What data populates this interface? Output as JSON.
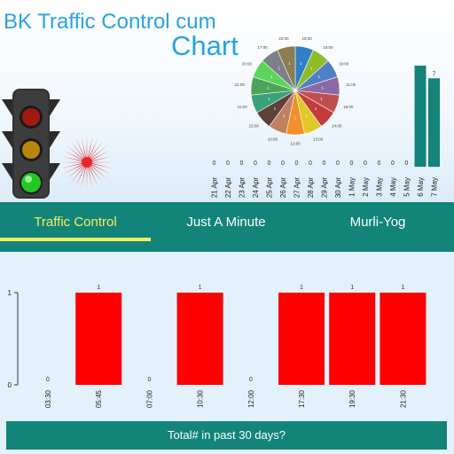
{
  "header": {
    "title_line1": "BK Traffic Control cum",
    "title_line2": "Chart"
  },
  "icons": [
    "traffic-light-icon",
    "chakra-icon"
  ],
  "colors": {
    "accent": "#29a3e0",
    "teal": "#128479",
    "active_tab": "#f4ee5a",
    "bar_red": "#ff0000"
  },
  "tabs": [
    {
      "label": "Traffic Control",
      "active": true
    },
    {
      "label": "Just A Minute",
      "active": false
    },
    {
      "label": "Murli-Yog",
      "active": false
    }
  ],
  "bottom_button": {
    "label": "Total# in past 30 days?"
  },
  "chart_data": [
    {
      "type": "pie",
      "labels": [
        "16:00",
        "18:00",
        "19:00",
        "11:00",
        "15:00",
        "14:00",
        "13:00",
        "12:00",
        "10:00",
        "15:00",
        "11:00",
        "21:00",
        "20:00",
        "17:00",
        "22:00"
      ],
      "values": [
        1,
        1,
        1,
        1,
        1,
        1,
        1,
        1,
        1,
        1,
        1,
        1,
        1,
        1,
        1
      ],
      "colors": [
        "#2e7fc6",
        "#8fbc2a",
        "#4f7fc4",
        "#8a6aa6",
        "#bf4f4f",
        "#c33b3b",
        "#e0c828",
        "#f0902b",
        "#c08060",
        "#5d4037",
        "#3aa07a",
        "#4ea35a",
        "#5cd45c",
        "#7c8087",
        "#8b7e50"
      ]
    },
    {
      "type": "bar",
      "categories": [
        "21 Apr",
        "22 Apr",
        "23 Apr",
        "24 Apr",
        "25 Apr",
        "26 Apr",
        "27 Apr",
        "28 Apr",
        "29 Apr",
        "30 Apr",
        "1 May",
        "2 May",
        "3 May",
        "4 May",
        "5 May",
        "6 May",
        "7 May"
      ],
      "values": [
        0,
        0,
        0,
        0,
        0,
        0,
        0,
        0,
        0,
        0,
        0,
        0,
        0,
        0,
        0,
        8,
        7
      ],
      "data_labels": [
        "0",
        "0",
        "0",
        "0",
        "0",
        "0",
        "0",
        "0",
        "0",
        "0",
        "0",
        "0",
        "0",
        "0",
        "0",
        "",
        "7"
      ],
      "ylim": [
        0,
        8
      ]
    },
    {
      "type": "bar",
      "categories": [
        "03:30",
        "05:45",
        "07:00",
        "10:30",
        "12:00",
        "17:30",
        "19:30",
        "21:30"
      ],
      "values": [
        0,
        1,
        0,
        1,
        0,
        1,
        1,
        1
      ],
      "y_ticks": [
        "0",
        "1"
      ],
      "ylim": [
        0,
        1
      ]
    }
  ]
}
